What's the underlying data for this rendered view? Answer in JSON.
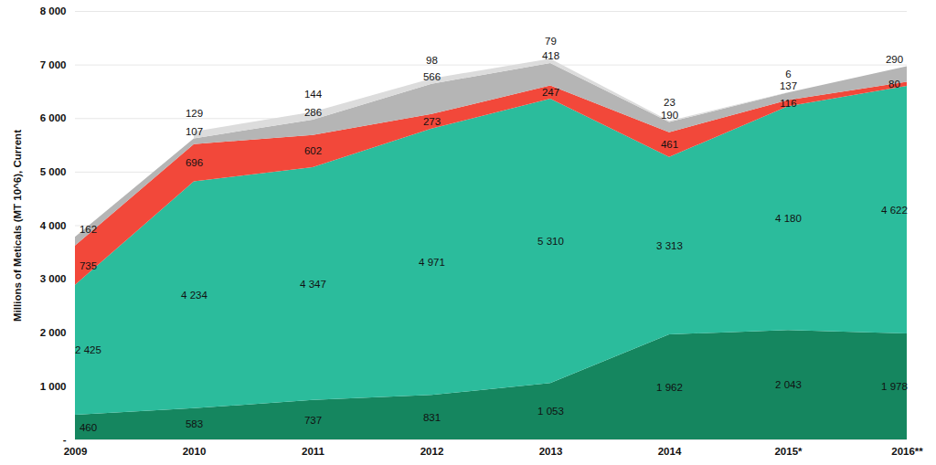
{
  "chart_data": {
    "type": "area",
    "stacked": true,
    "data_labels": true,
    "grid": true,
    "ylabel": "Millions of Meticals (MT 10^6), Current",
    "categories": [
      "2009",
      "2010",
      "2011",
      "2012",
      "2013",
      "2014",
      "2015*",
      "2016**"
    ],
    "ylim": [
      0,
      8000
    ],
    "yticks": [
      {
        "value": 0,
        "label": "-"
      },
      {
        "value": 1000,
        "label": "1 000"
      },
      {
        "value": 2000,
        "label": "2 000"
      },
      {
        "value": 3000,
        "label": "3 000"
      },
      {
        "value": 4000,
        "label": "4 000"
      },
      {
        "value": 5000,
        "label": "5 000"
      },
      {
        "value": 6000,
        "label": "6 000"
      },
      {
        "value": 7000,
        "label": "7 000"
      },
      {
        "value": 8000,
        "label": "8 000"
      }
    ],
    "series": [
      {
        "color": "#15865f",
        "values": [
          460,
          583,
          737,
          831,
          1053,
          1962,
          2043,
          1978
        ],
        "value_labels": [
          "460",
          "583",
          "737",
          "831",
          "1 053",
          "1 962",
          "2 043",
          "1 978"
        ]
      },
      {
        "color": "#2bbc9c",
        "values": [
          2425,
          4234,
          4347,
          4971,
          5310,
          3313,
          4180,
          4622
        ],
        "value_labels": [
          "2 425",
          "4 234",
          "4 347",
          "4 971",
          "5 310",
          "3 313",
          "4 180",
          "4 622"
        ]
      },
      {
        "color": "#f2483a",
        "values": [
          735,
          696,
          602,
          273,
          247,
          461,
          116,
          80
        ]
      },
      {
        "color": "#b5b5b5",
        "values": [
          162,
          107,
          286,
          566,
          418,
          190,
          137,
          290
        ]
      },
      {
        "color": "#dcdcdc",
        "values": [
          null,
          129,
          144,
          98,
          79,
          23,
          6,
          null
        ]
      }
    ]
  }
}
